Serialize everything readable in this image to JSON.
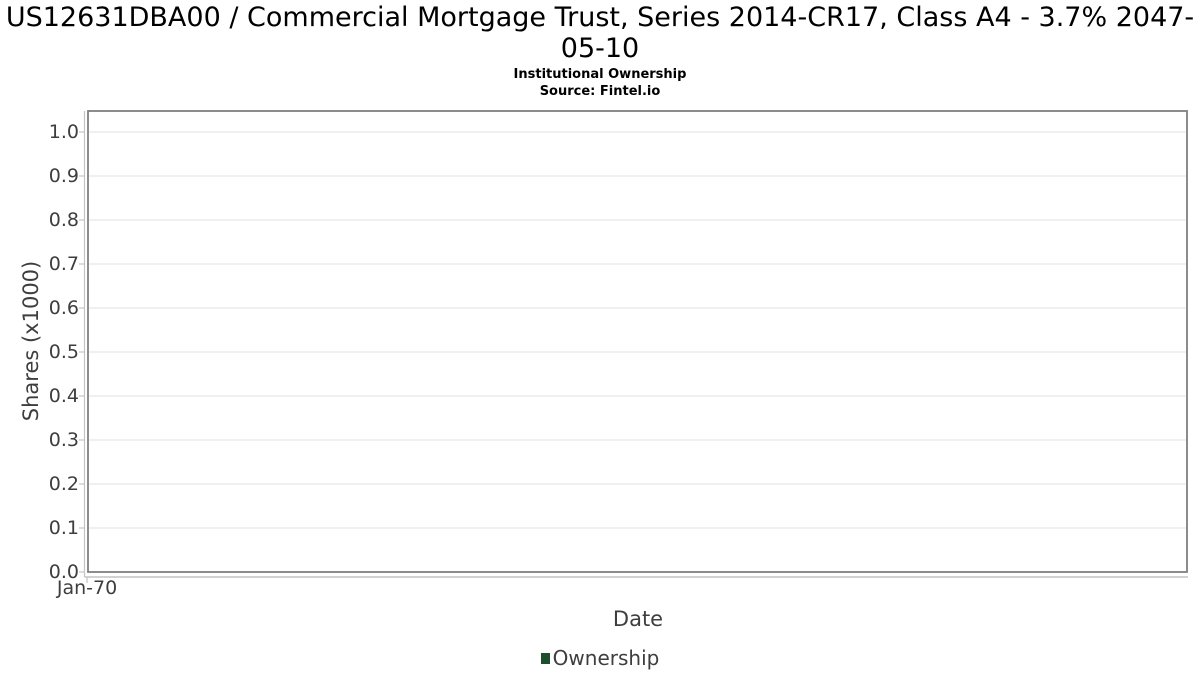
{
  "page": {
    "background": "#ffffff"
  },
  "chart_data": {
    "type": "line",
    "title": "US12631DBA00 / Commercial Mortgage Trust, Series 2014-CR17, Class A4 - 3.7% 2047-05-10",
    "subtitle": "Institutional Ownership",
    "source": "Source: Fintel.io",
    "xlabel": "Date",
    "ylabel": "Shares (x1000)",
    "x_tick_labels": [
      "Jan-70"
    ],
    "y_tick_labels": [
      "0.0",
      "0.1",
      "0.2",
      "0.3",
      "0.4",
      "0.5",
      "0.6",
      "0.7",
      "0.8",
      "0.9",
      "1.0"
    ],
    "ylim": [
      0,
      1.05
    ],
    "grid": true,
    "legend_position": "bottom",
    "series": [
      {
        "name": "Ownership",
        "color": "#1d4f2c",
        "x": [],
        "values": []
      }
    ]
  },
  "colors": {
    "plot_border": "#7f7f7f",
    "gridline": "#e8e8e8",
    "axis_line": "#c4c4c4",
    "tick_text": "#3e3e3e",
    "title_text": "#000000"
  }
}
